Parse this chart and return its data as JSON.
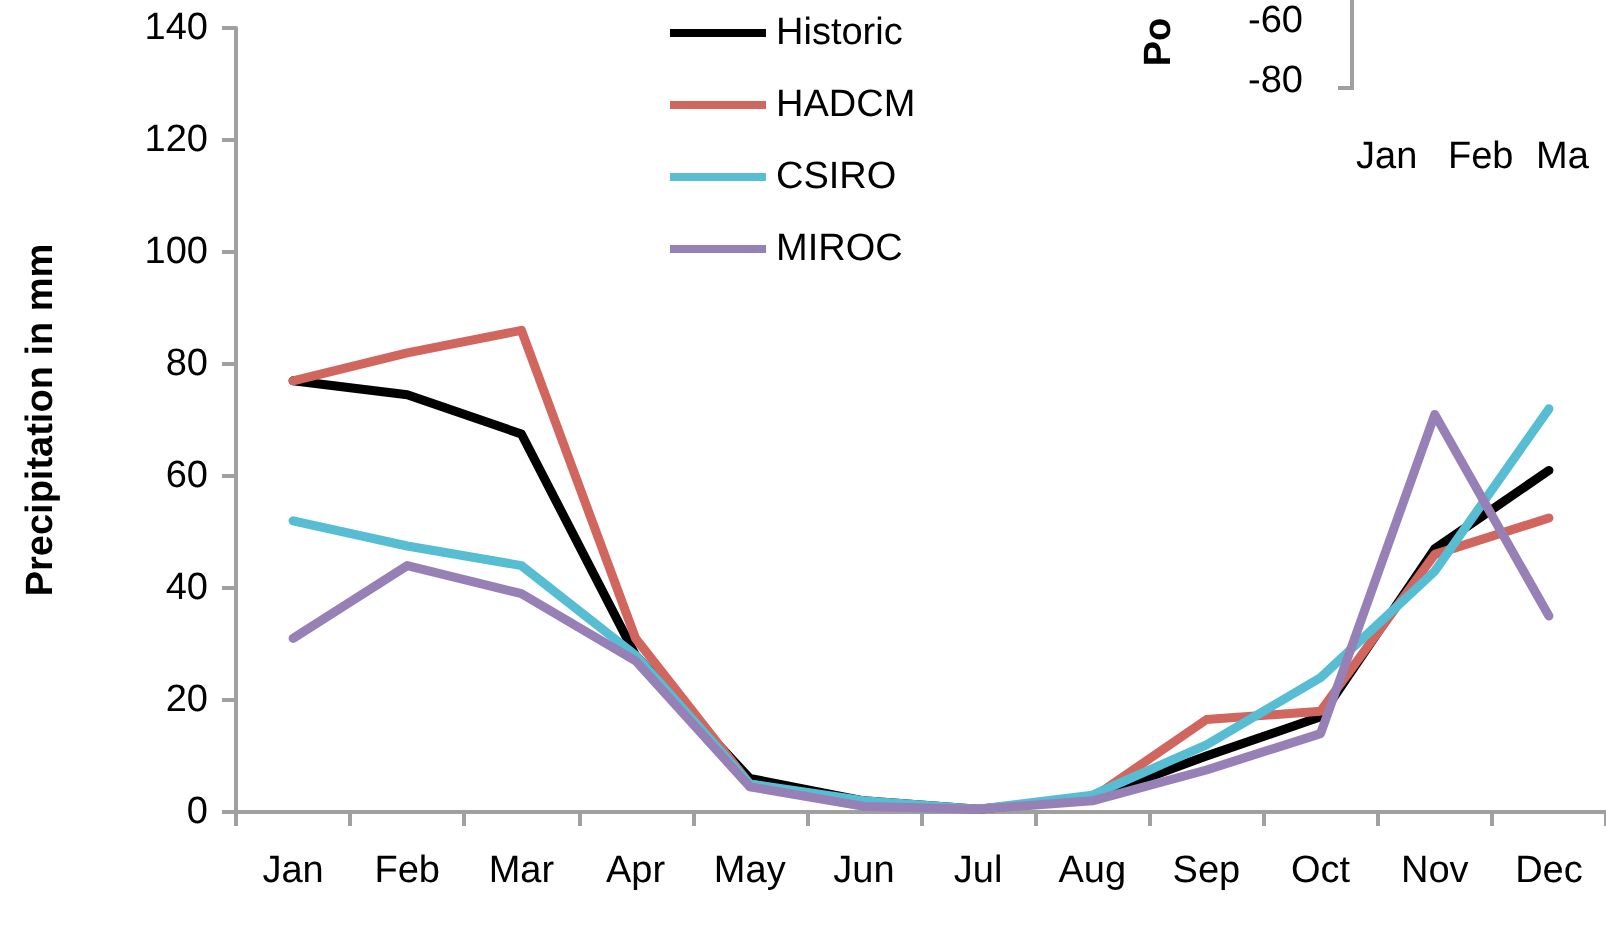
{
  "chart_data": [
    {
      "type": "line",
      "ylabel": "Precipitation in mm",
      "categories": [
        "Jan",
        "Feb",
        "Mar",
        "Apr",
        "May",
        "Jun",
        "Jul",
        "Aug",
        "Sep",
        "Oct",
        "Nov",
        "Dec"
      ],
      "series": [
        {
          "name": "Historic",
          "color": "#000000",
          "values": [
            77,
            74.5,
            67.5,
            28,
            6,
            2,
            0.5,
            2.5,
            10,
            17,
            47,
            61
          ]
        },
        {
          "name": "HADCM",
          "color": "#d0665e",
          "values": [
            77,
            82,
            86,
            31,
            5,
            1.5,
            0.5,
            2.5,
            16.5,
            18,
            46,
            52.5
          ]
        },
        {
          "name": "CSIRO",
          "color": "#57bdd3",
          "values": [
            52,
            47.5,
            44,
            28,
            5,
            2,
            0.5,
            3,
            12,
            24,
            43,
            72
          ]
        },
        {
          "name": "MIROC",
          "color": "#9680b6",
          "values": [
            31,
            44,
            39,
            27,
            4.5,
            1,
            0.5,
            2,
            7.5,
            14,
            71,
            35
          ]
        }
      ],
      "ylim": [
        0,
        140
      ],
      "yticks": [
        0,
        20,
        40,
        60,
        80,
        100,
        120,
        140
      ],
      "grid": false,
      "legend": "top",
      "marker": "none",
      "line_style": "solid"
    },
    {
      "type": "other",
      "annotations": [
        "Po",
        "-60",
        "-80",
        "Jan",
        "Feb",
        "Ma"
      ]
    }
  ]
}
